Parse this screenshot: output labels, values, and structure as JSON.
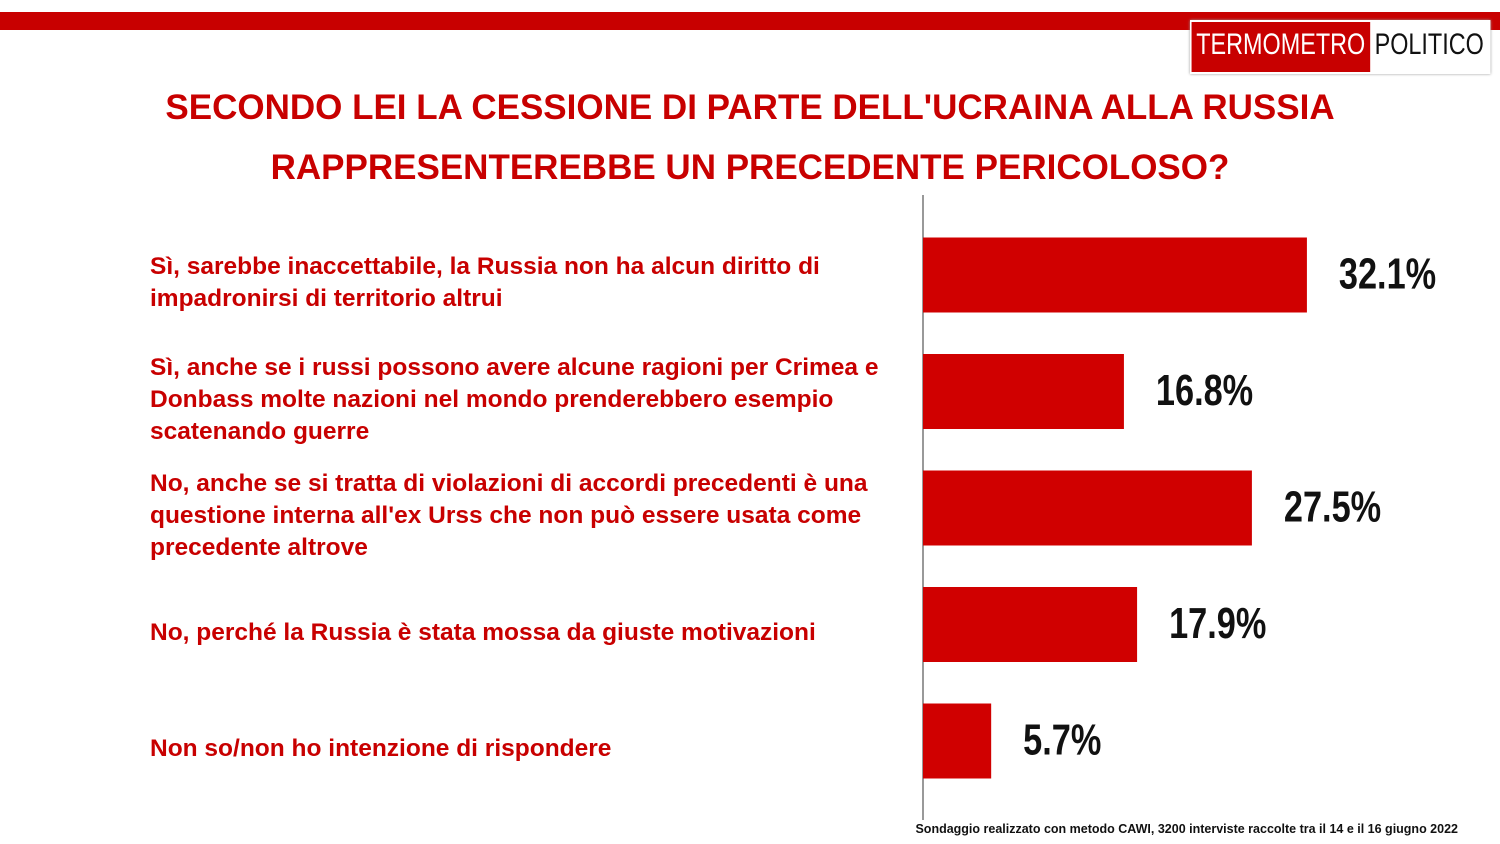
{
  "chart_data": {
    "type": "bar",
    "orientation": "horizontal",
    "title": "SECONDO LEI LA CESSIONE DI PARTE DELL'UCRAINA ALLA RUSSIA RAPPRESENTEREBBE UN PRECEDENTE PERICOLOSO?",
    "categories": [
      "Sì, sarebbe inaccettabile, la Russia non ha alcun diritto di impadronirsi di territorio altrui",
      "Sì, anche se i russi possono avere alcune ragioni per Crimea e Donbass molte nazioni nel mondo prenderebbero esempio scatenando guerre",
      "No, anche se si tratta di violazioni di accordi precedenti è una questione interna all'ex Urss che non può essere usata come precedente altrove",
      "No, perché la Russia è stata mossa da giuste motivazioni",
      "Non so/non ho intenzione di rispondere"
    ],
    "values": [
      32.1,
      16.8,
      27.5,
      17.9,
      5.7
    ],
    "value_labels": [
      "32.1%",
      "16.8%",
      "27.5%",
      "17.9%",
      "5.7%"
    ],
    "color": "#d00000",
    "note": "Sondaggio realizzato con metodo CAWI, 3200 interviste raccolte tra il 14 e il 16 giugno 2022"
  },
  "logo": {
    "left": "TERMOMETRO",
    "right": "POLITICO"
  }
}
